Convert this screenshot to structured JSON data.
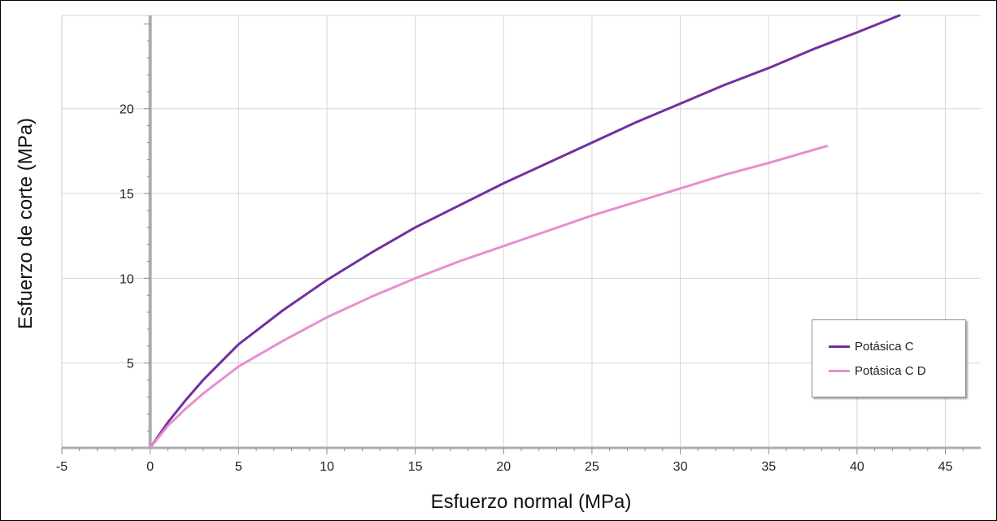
{
  "chart_data": {
    "type": "line",
    "title": "",
    "xlabel": "Esfuerzo normal (MPa)",
    "ylabel": "Esfuerzo de corte (MPa)",
    "xlim": [
      -5,
      47
    ],
    "ylim": [
      0,
      25.5
    ],
    "xticks": [
      "-5",
      "0",
      "5",
      "10",
      "15",
      "20",
      "25",
      "30",
      "35",
      "40",
      "45"
    ],
    "yticks": [
      "5",
      "10",
      "15",
      "20"
    ],
    "grid": true,
    "legend_position": "right",
    "series": [
      {
        "name": "Potásica C",
        "color": "#7030a0",
        "x": [
          0,
          1,
          2,
          3,
          5,
          7.5,
          10,
          12.5,
          15,
          17.5,
          20,
          22.5,
          25,
          27.5,
          30,
          32.5,
          35,
          37.5,
          40,
          42.4
        ],
        "y": [
          0,
          1.5,
          2.8,
          4.0,
          6.1,
          8.1,
          9.9,
          11.5,
          13.0,
          14.3,
          15.6,
          16.8,
          18.0,
          19.2,
          20.3,
          21.4,
          22.4,
          23.5,
          24.5,
          25.5
        ]
      },
      {
        "name": "Potásica C D",
        "color": "#e68fd0",
        "x": [
          0,
          1,
          2,
          3,
          5,
          7.5,
          10,
          12.5,
          15,
          17.5,
          20,
          22.5,
          25,
          27.5,
          30,
          32.5,
          35,
          38.3
        ],
        "y": [
          0,
          1.3,
          2.3,
          3.2,
          4.8,
          6.3,
          7.7,
          8.9,
          10.0,
          11.0,
          11.9,
          12.8,
          13.7,
          14.5,
          15.3,
          16.1,
          16.8,
          17.8
        ]
      }
    ]
  }
}
